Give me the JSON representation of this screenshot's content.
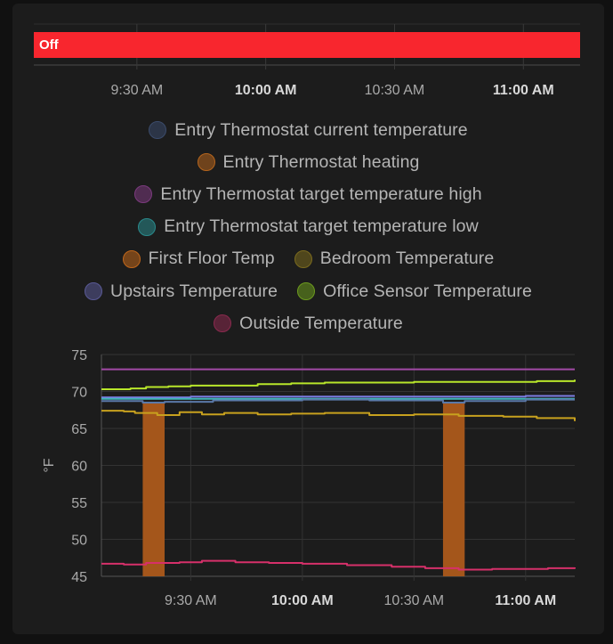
{
  "timeline": {
    "state_label": "Off",
    "state_color": "#f8262e",
    "ticks": [
      {
        "label": "9:30 AM",
        "bold": false,
        "t": 9.5
      },
      {
        "label": "10:00 AM",
        "bold": true,
        "t": 10.0
      },
      {
        "label": "10:30 AM",
        "bold": false,
        "t": 10.5
      },
      {
        "label": "11:00 AM",
        "bold": true,
        "t": 11.0
      }
    ]
  },
  "legend": {
    "rows": [
      [
        {
          "label": "Entry Thermostat current temperature",
          "color": "#3b4b6b"
        }
      ],
      [
        {
          "label": "Entry Thermostat heating",
          "color": "#b5651d"
        }
      ],
      [
        {
          "label": "Entry Thermostat target temperature high",
          "color": "#7b3a7e"
        }
      ],
      [
        {
          "label": "Entry Thermostat target temperature low",
          "color": "#2a8a8c"
        }
      ],
      [
        {
          "label": "First Floor Temp",
          "color": "#c0661a"
        },
        {
          "label": "Bedroom Temperature",
          "color": "#7a6a1e"
        }
      ],
      [
        {
          "label": "Upstairs Temperature",
          "color": "#5a5a96"
        },
        {
          "label": "Office Sensor Temperature",
          "color": "#6c9a1e"
        }
      ],
      [
        {
          "label": "Outside Temperature",
          "color": "#8a2a4e"
        }
      ]
    ]
  },
  "chart_data": {
    "type": "line",
    "ylabel": "°F",
    "ylim": [
      45,
      75
    ],
    "yticks": [
      45,
      50,
      55,
      60,
      65,
      70,
      75
    ],
    "xlim": [
      9.1,
      11.22
    ],
    "xticks": [
      {
        "label": "9:30 AM",
        "bold": false,
        "t": 9.5
      },
      {
        "label": "10:00 AM",
        "bold": true,
        "t": 10.0
      },
      {
        "label": "10:30 AM",
        "bold": false,
        "t": 10.5
      },
      {
        "label": "11:00 AM",
        "bold": true,
        "t": 11.0
      }
    ],
    "heating_periods": [
      {
        "start": 9.285,
        "end": 9.383,
        "color": "#a4561b"
      },
      {
        "start": 10.63,
        "end": 10.727,
        "color": "#a4561b"
      }
    ],
    "series": [
      {
        "name": "Entry Thermostat target temperature high",
        "color": "#a24aa6",
        "x": [
          9.1,
          11.22
        ],
        "y": [
          73,
          73
        ]
      },
      {
        "name": "Office Sensor Temperature",
        "color": "#b8e62a",
        "x": [
          9.1,
          9.23,
          9.3,
          9.4,
          9.5,
          9.65,
          9.8,
          9.95,
          10.1,
          10.3,
          10.5,
          10.7,
          10.9,
          11.05,
          11.22
        ],
        "y": [
          70.3,
          70.4,
          70.6,
          70.7,
          70.8,
          70.8,
          71.0,
          71.1,
          71.2,
          71.2,
          71.3,
          71.3,
          71.3,
          71.4,
          71.6
        ]
      },
      {
        "name": "Upstairs Temperature",
        "color": "#7b7be0",
        "x": [
          9.1,
          9.5,
          10.0,
          10.5,
          11.0,
          11.22
        ],
        "y": [
          69.2,
          69.3,
          69.3,
          69.3,
          69.4,
          69.4
        ]
      },
      {
        "name": "Entry Thermostat target temperature low",
        "color": "#3fb6b8",
        "x": [
          9.1,
          11.22
        ],
        "y": [
          69,
          69
        ]
      },
      {
        "name": "Entry Thermostat current temperature",
        "color": "#5a78a8",
        "x": [
          9.1,
          9.285,
          9.383,
          9.6,
          10.0,
          10.3,
          10.63,
          10.727,
          11.0,
          11.22
        ],
        "y": [
          68.7,
          68.5,
          68.6,
          68.8,
          68.9,
          68.8,
          68.5,
          68.7,
          68.9,
          68.9
        ]
      },
      {
        "name": "Bedroom Temperature",
        "color": "#c8a11e",
        "x": [
          9.1,
          9.2,
          9.25,
          9.35,
          9.45,
          9.55,
          9.65,
          9.8,
          9.95,
          10.1,
          10.3,
          10.5,
          10.7,
          10.9,
          11.05,
          11.22
        ],
        "y": [
          67.4,
          67.3,
          67.1,
          66.8,
          67.2,
          66.9,
          67.1,
          66.9,
          67.0,
          67.1,
          66.8,
          66.9,
          66.7,
          66.6,
          66.4,
          66.0
        ]
      },
      {
        "name": "Outside Temperature",
        "color": "#d6306a",
        "x": [
          9.1,
          9.2,
          9.3,
          9.45,
          9.55,
          9.7,
          9.85,
          10.0,
          10.2,
          10.4,
          10.55,
          10.7,
          10.85,
          11.0,
          11.1,
          11.22
        ],
        "y": [
          46.7,
          46.6,
          46.8,
          46.9,
          47.1,
          46.9,
          46.8,
          46.7,
          46.5,
          46.3,
          46.1,
          45.9,
          46.0,
          46.0,
          46.1,
          46.2
        ]
      }
    ]
  }
}
